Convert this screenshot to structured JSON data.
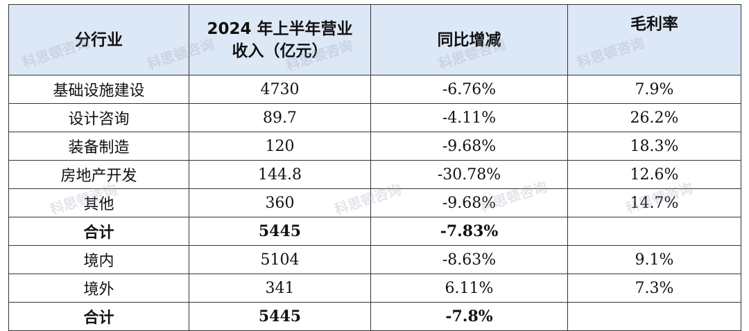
{
  "table": {
    "headers": {
      "segment": "分行业",
      "revenue_line1": "2024 年上半年营业",
      "revenue_line2": "收入（亿元）",
      "yoy": "同比增减",
      "margin": "毛利率"
    },
    "rows": [
      {
        "segment": "基础设施建设",
        "revenue": "4730",
        "yoy": "-6.76%",
        "margin": "7.9%",
        "bold": false
      },
      {
        "segment": "设计咨询",
        "revenue": "89.7",
        "yoy": "-4.11%",
        "margin": "26.2%",
        "bold": false
      },
      {
        "segment": "装备制造",
        "revenue": "120",
        "yoy": "-9.68%",
        "margin": "18.3%",
        "bold": false
      },
      {
        "segment": "房地产开发",
        "revenue": "144.8",
        "yoy": "-30.78%",
        "margin": "12.6%",
        "bold": false
      },
      {
        "segment": "其他",
        "revenue": "360",
        "yoy": "-9.68%",
        "margin": "14.7%",
        "bold": false
      },
      {
        "segment": "合计",
        "revenue": "5445",
        "yoy": "-7.83%",
        "margin": "",
        "bold": true
      },
      {
        "segment": "境内",
        "revenue": "5104",
        "yoy": "-8.63%",
        "margin": "9.1%",
        "bold": false
      },
      {
        "segment": "境外",
        "revenue": "341",
        "yoy": "6.11%",
        "margin": "7.3%",
        "bold": false
      },
      {
        "segment": "合计",
        "revenue": "5445",
        "yoy": "-7.8%",
        "margin": "",
        "bold": true
      }
    ]
  },
  "watermark": "科思顿咨询"
}
